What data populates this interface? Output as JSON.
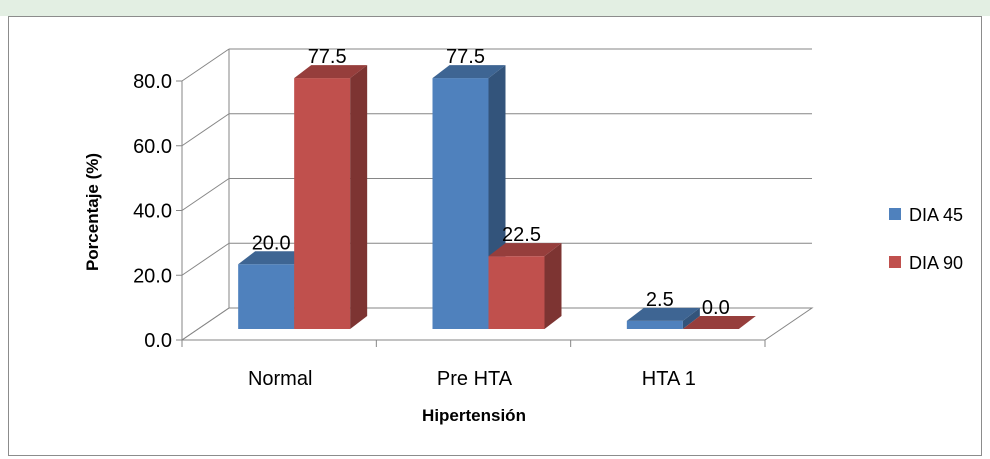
{
  "chart_data": {
    "type": "bar",
    "xlabel": "Hipertensión",
    "ylabel": "Porcentaje (%)",
    "categories": [
      "Normal",
      "Pre HTA",
      "HTA 1"
    ],
    "series": [
      {
        "name": "DIA 45",
        "values": [
          20.0,
          77.5,
          2.5
        ],
        "labels": [
          "20.0",
          "77.5",
          "2.5"
        ],
        "color": "#4f81bd"
      },
      {
        "name": "DIA 90",
        "values": [
          77.5,
          22.5,
          0.0
        ],
        "labels": [
          "77.5",
          "22.5",
          "0.0"
        ],
        "color": "#c0504d"
      }
    ],
    "ylim": [
      0,
      80
    ],
    "yticks": [
      "0.0",
      "20.0",
      "40.0",
      "60.0",
      "80.0"
    ],
    "grid": true,
    "legend_position": "right",
    "style": "3d-column"
  }
}
